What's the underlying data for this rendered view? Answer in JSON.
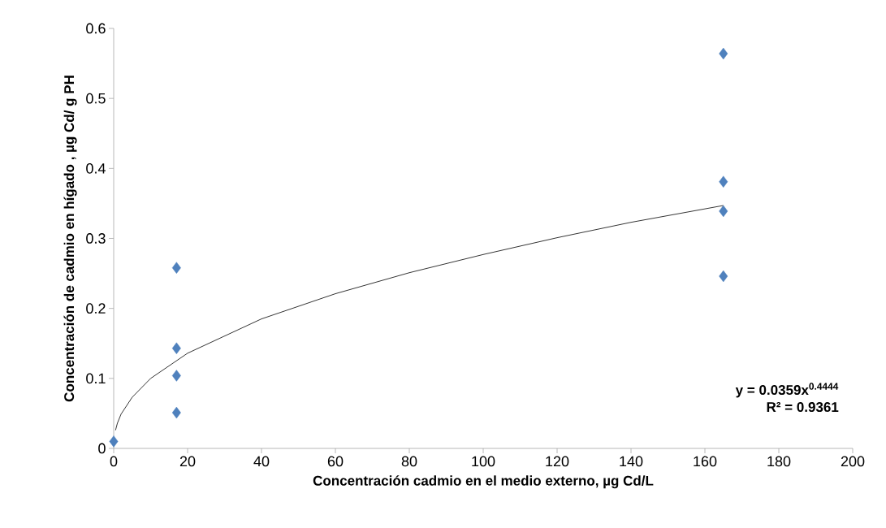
{
  "chart_data": {
    "type": "scatter",
    "xlabel": "Concentración cadmio en el medio externo, µg Cd/L",
    "ylabel": "Concentración de cadmio en hígado , µg Cd/ g PH",
    "series": [
      {
        "color": "#4f81bd",
        "marker": "diamond",
        "x": [
          0,
          17,
          17,
          17,
          17,
          165,
          165,
          165,
          165
        ],
        "values": [
          0.01,
          0.258,
          0.143,
          0.104,
          0.051,
          0.564,
          0.381,
          0.339,
          0.246
        ]
      },
      {
        "type": "line",
        "color": "#000000",
        "marker": "none",
        "line_style": "solid",
        "x": [
          0.5,
          1,
          2,
          5,
          10,
          20,
          40,
          60,
          80,
          100,
          120,
          140,
          165
        ],
        "values": [
          0.026,
          0.036,
          0.049,
          0.073,
          0.1,
          0.136,
          0.185,
          0.221,
          0.251,
          0.277,
          0.301,
          0.323,
          0.347
        ]
      }
    ],
    "annotations": [
      "y = 0.0359x$^{0.4444}$",
      "R² = 0.9361"
    ],
    "xlim": [
      0,
      200
    ],
    "ylim": [
      0,
      0.6
    ],
    "xticks": [
      0,
      20,
      40,
      60,
      80,
      100,
      120,
      140,
      160,
      180,
      200
    ],
    "yticks": [
      0,
      0.1,
      0.2,
      0.3,
      0.4,
      0.5,
      0.6
    ]
  }
}
